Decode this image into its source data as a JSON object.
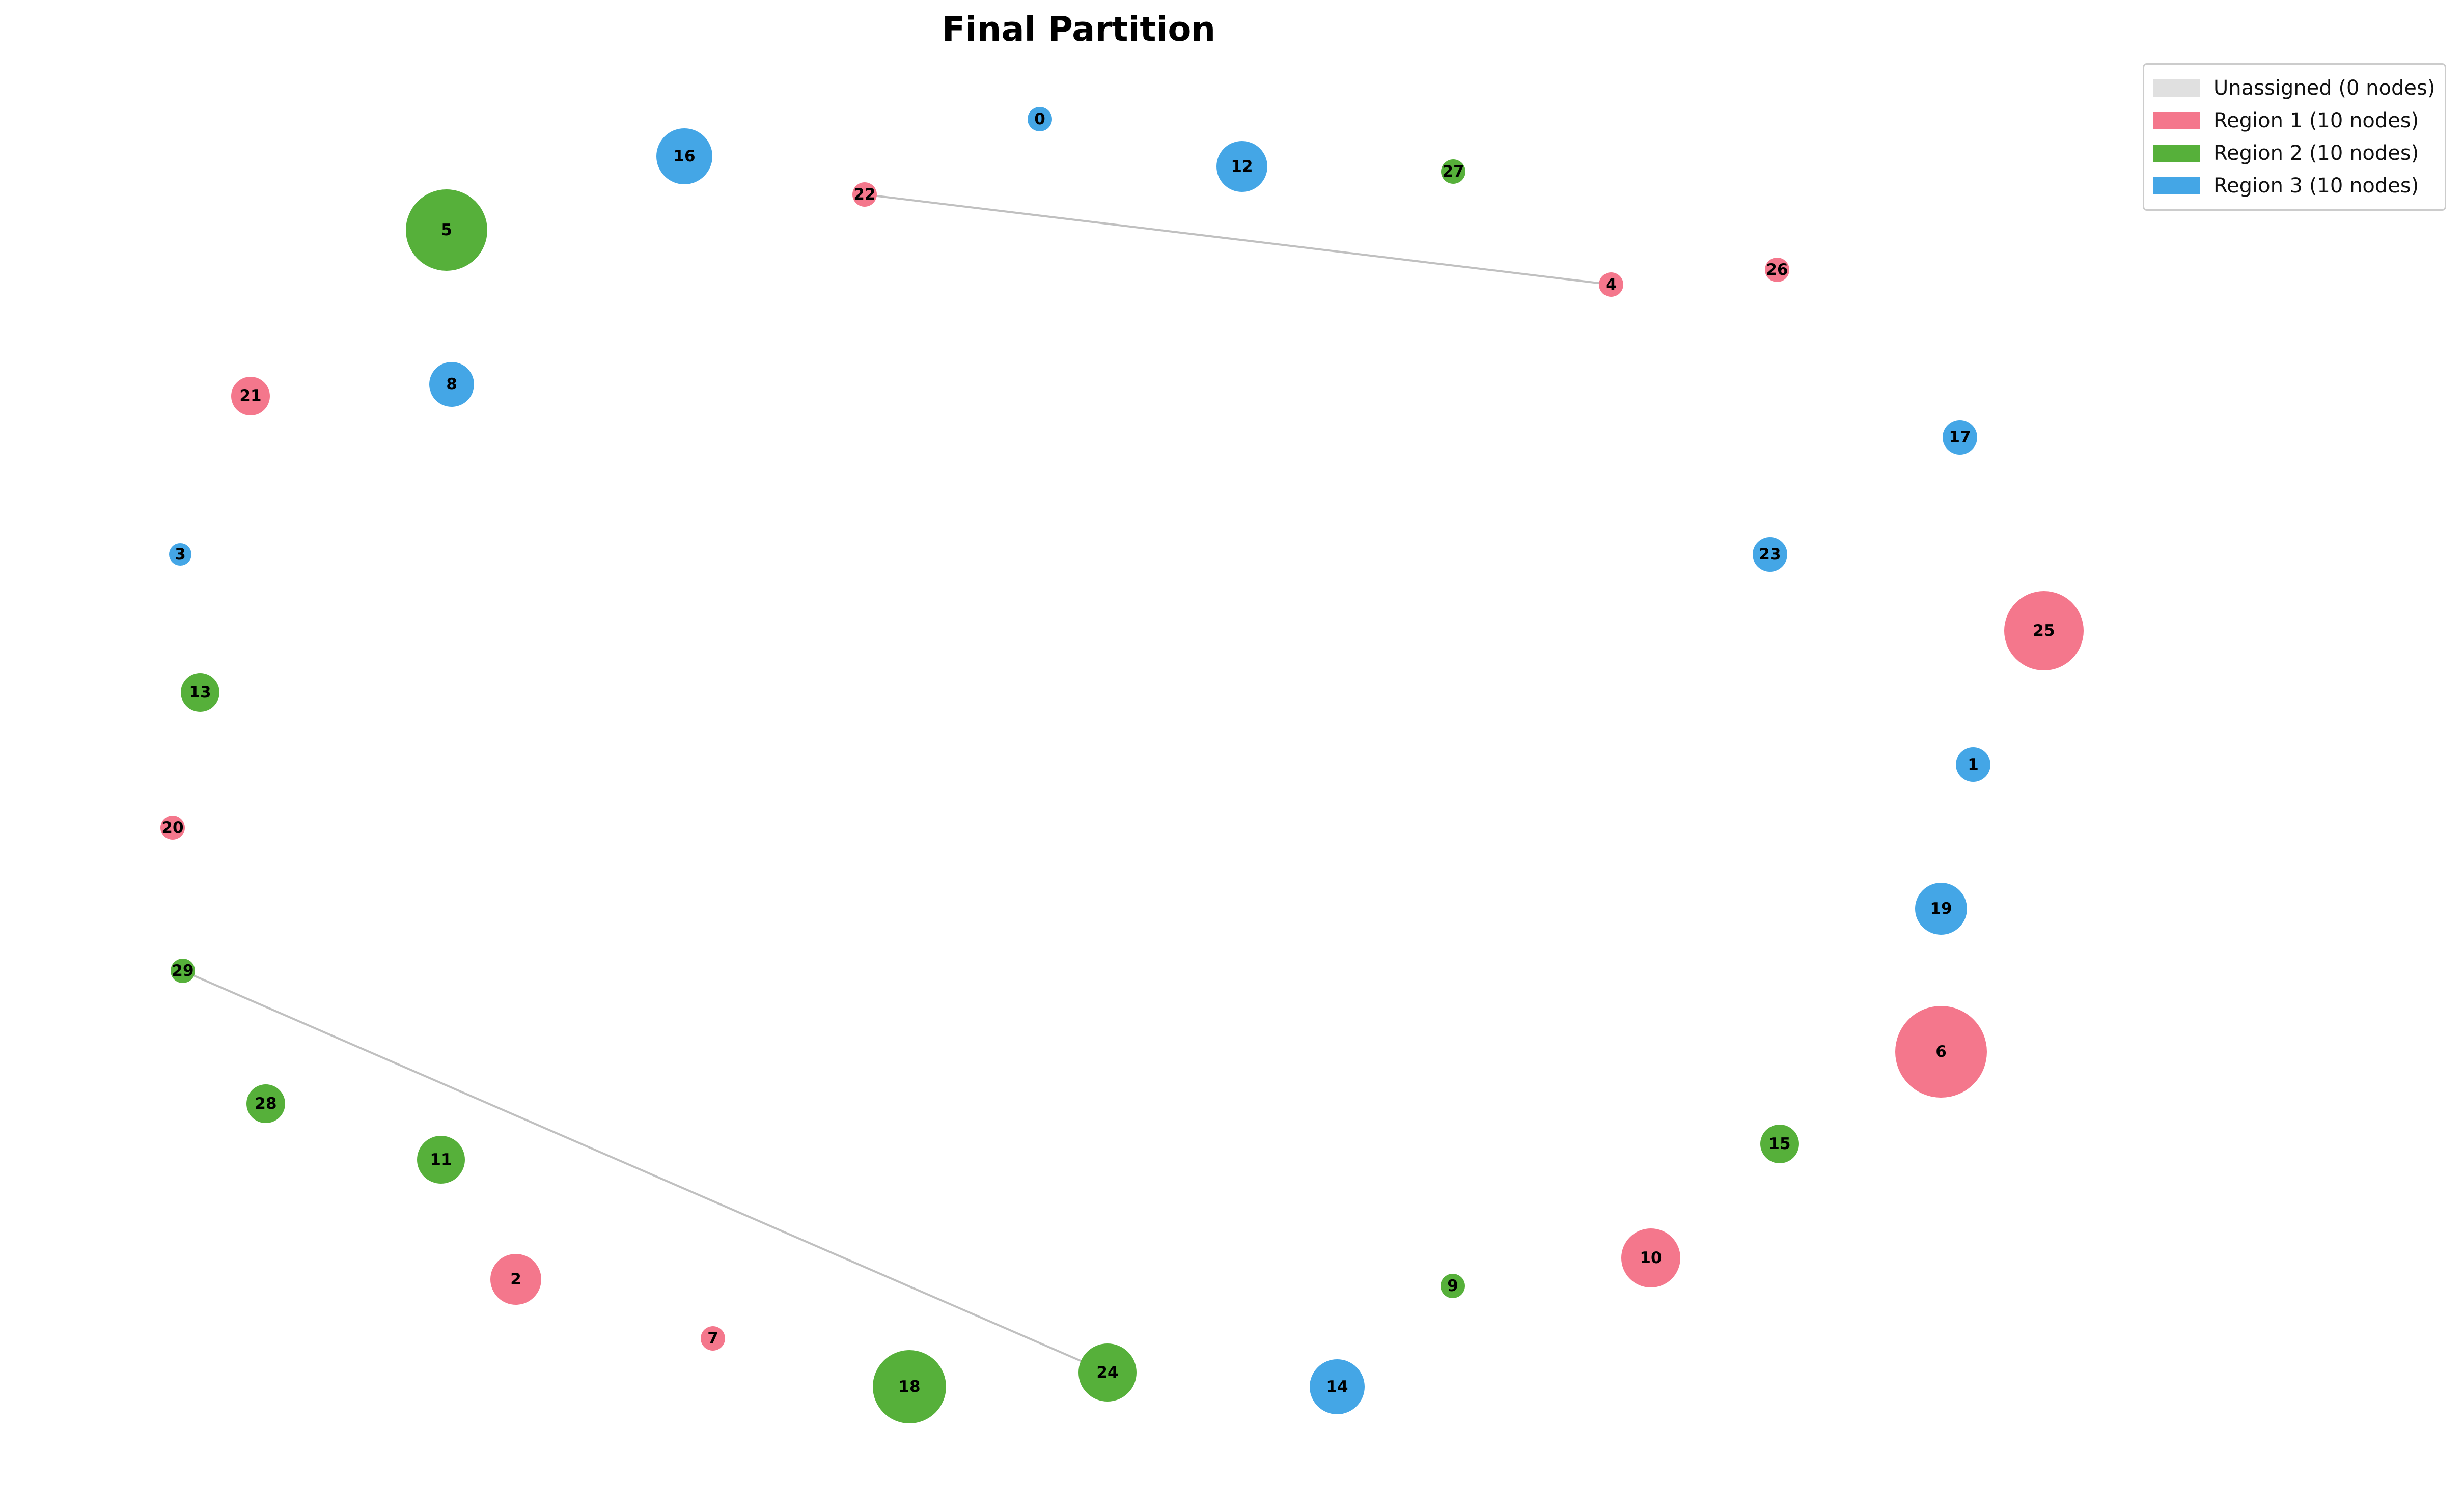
{
  "title": "Final Partition",
  "colors": {
    "unassigned": "#e0e0e0",
    "region1": "#f4778c",
    "region2": "#56b03a",
    "region3": "#44a6e6",
    "edge": "#c0c0c0"
  },
  "legend": [
    {
      "label": "Unassigned (0 nodes)",
      "region": "unassigned"
    },
    {
      "label": "Region 1 (10 nodes)",
      "region": "region1"
    },
    {
      "label": "Region 2 (10 nodes)",
      "region": "region2"
    },
    {
      "label": "Region 3 (10 nodes)",
      "region": "region3"
    }
  ],
  "nodes": [
    {
      "id": "0",
      "region": "region3"
    },
    {
      "id": "1",
      "region": "region3"
    },
    {
      "id": "2",
      "region": "region1"
    },
    {
      "id": "3",
      "region": "region3"
    },
    {
      "id": "4",
      "region": "region1"
    },
    {
      "id": "5",
      "region": "region2"
    },
    {
      "id": "6",
      "region": "region1"
    },
    {
      "id": "7",
      "region": "region1"
    },
    {
      "id": "8",
      "region": "region3"
    },
    {
      "id": "9",
      "region": "region2"
    },
    {
      "id": "10",
      "region": "region1"
    },
    {
      "id": "11",
      "region": "region2"
    },
    {
      "id": "12",
      "region": "region3"
    },
    {
      "id": "13",
      "region": "region2"
    },
    {
      "id": "14",
      "region": "region3"
    },
    {
      "id": "15",
      "region": "region2"
    },
    {
      "id": "16",
      "region": "region3"
    },
    {
      "id": "17",
      "region": "region3"
    },
    {
      "id": "18",
      "region": "region2"
    },
    {
      "id": "19",
      "region": "region3"
    },
    {
      "id": "20",
      "region": "region1"
    },
    {
      "id": "21",
      "region": "region1"
    },
    {
      "id": "22",
      "region": "region1"
    },
    {
      "id": "23",
      "region": "region3"
    },
    {
      "id": "24",
      "region": "region2"
    },
    {
      "id": "25",
      "region": "region1"
    },
    {
      "id": "26",
      "region": "region1"
    },
    {
      "id": "27",
      "region": "region2"
    },
    {
      "id": "28",
      "region": "region2"
    },
    {
      "id": "29",
      "region": "region2"
    }
  ],
  "edges": [
    [
      "22",
      "4"
    ],
    [
      "29",
      "24"
    ]
  ]
}
